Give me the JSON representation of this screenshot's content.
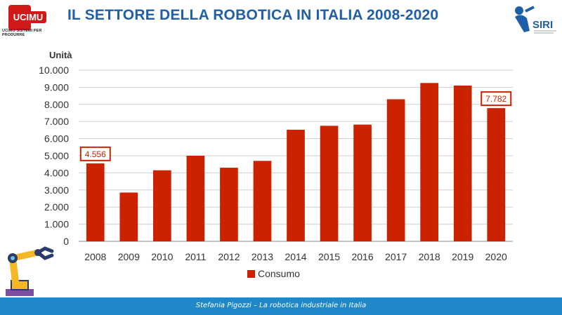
{
  "header": {
    "title": "IL SETTORE DELLA ROBOTICA IN ITALIA 2008-2020",
    "left_logo": {
      "name": "UCIMU",
      "tagline": "UCIMU-SISTEMI PER PRODURRE",
      "color": "#d01a1a"
    },
    "right_logo": {
      "name": "SIRI",
      "color": "#1f5ea8"
    }
  },
  "footer": {
    "text": "Stefania Pigozzi – La robotica industriale in Italia",
    "color": "#1e88c8"
  },
  "chart_data": {
    "type": "bar",
    "title": "",
    "xlabel": "",
    "ylabel": "Unità",
    "categories": [
      "2008",
      "2009",
      "2010",
      "2011",
      "2012",
      "2013",
      "2014",
      "2015",
      "2016",
      "2017",
      "2018",
      "2019",
      "2020"
    ],
    "series": [
      {
        "name": "Consumo",
        "color": "#cc2200",
        "values": [
          4556,
          2850,
          4150,
          5000,
          4300,
          4700,
          6520,
          6750,
          6820,
          8300,
          9250,
          9100,
          7782
        ]
      }
    ],
    "ylim": [
      0,
      10000
    ],
    "yticks": [
      0,
      1000,
      2000,
      3000,
      4000,
      5000,
      6000,
      7000,
      8000,
      9000,
      10000
    ],
    "ytick_labels": [
      "0",
      "1.000",
      "2.000",
      "3.000",
      "4.000",
      "5.000",
      "6.000",
      "7.000",
      "8.000",
      "9.000",
      "10.000"
    ],
    "annotations": [
      {
        "category": "2008",
        "text": "4.556"
      },
      {
        "category": "2020",
        "text": "7.782"
      }
    ],
    "grid": true,
    "legend": "bottom-center"
  }
}
